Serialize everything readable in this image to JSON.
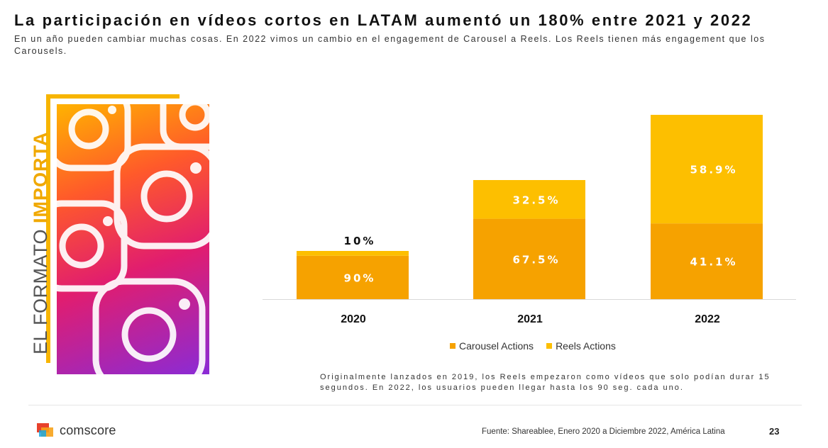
{
  "header": {
    "title": "La participación en vídeos cortos en LATAM aumentó un 180% entre 2021 y 2022",
    "subtitle": "En un año pueden cambiar muchas cosas. En 2022 vimos un cambio en el engagement de Carousel a Reels. Los Reels tienen más engagement que los Carousels."
  },
  "side_banner": {
    "plain": "EL FORMATO ",
    "accent": "IMPORTA"
  },
  "chart_data": {
    "type": "bar",
    "stacked": true,
    "categories": [
      "2020",
      "2021",
      "2022"
    ],
    "series": [
      {
        "name": "Carousel Actions",
        "values": [
          90,
          67.5,
          41.1
        ],
        "labels": [
          "90%",
          "67.5%",
          "41.1%"
        ],
        "color": "#f6a200"
      },
      {
        "name": "Reels Actions",
        "values": [
          10,
          32.5,
          58.9
        ],
        "labels": [
          "10%",
          "32.5%",
          "58.9%"
        ],
        "color": "#fdbf00"
      }
    ],
    "legend_position": "bottom",
    "grid": false
  },
  "note": "Originalmente lanzados en 2019, los Reels empezaron como vídeos que solo podían durar 15 segundos. En 2022, los usuarios pueden llegar hasta los 90 seg. cada uno.",
  "footer": {
    "brand": "comscore",
    "source": "Fuente: Shareablee, Enero 2020 a Diciembre 2022, América Latina",
    "page_number": "23"
  },
  "colors": {
    "accent": "#f7b500",
    "carousel": "#f6a200",
    "reels": "#fdbf00"
  }
}
